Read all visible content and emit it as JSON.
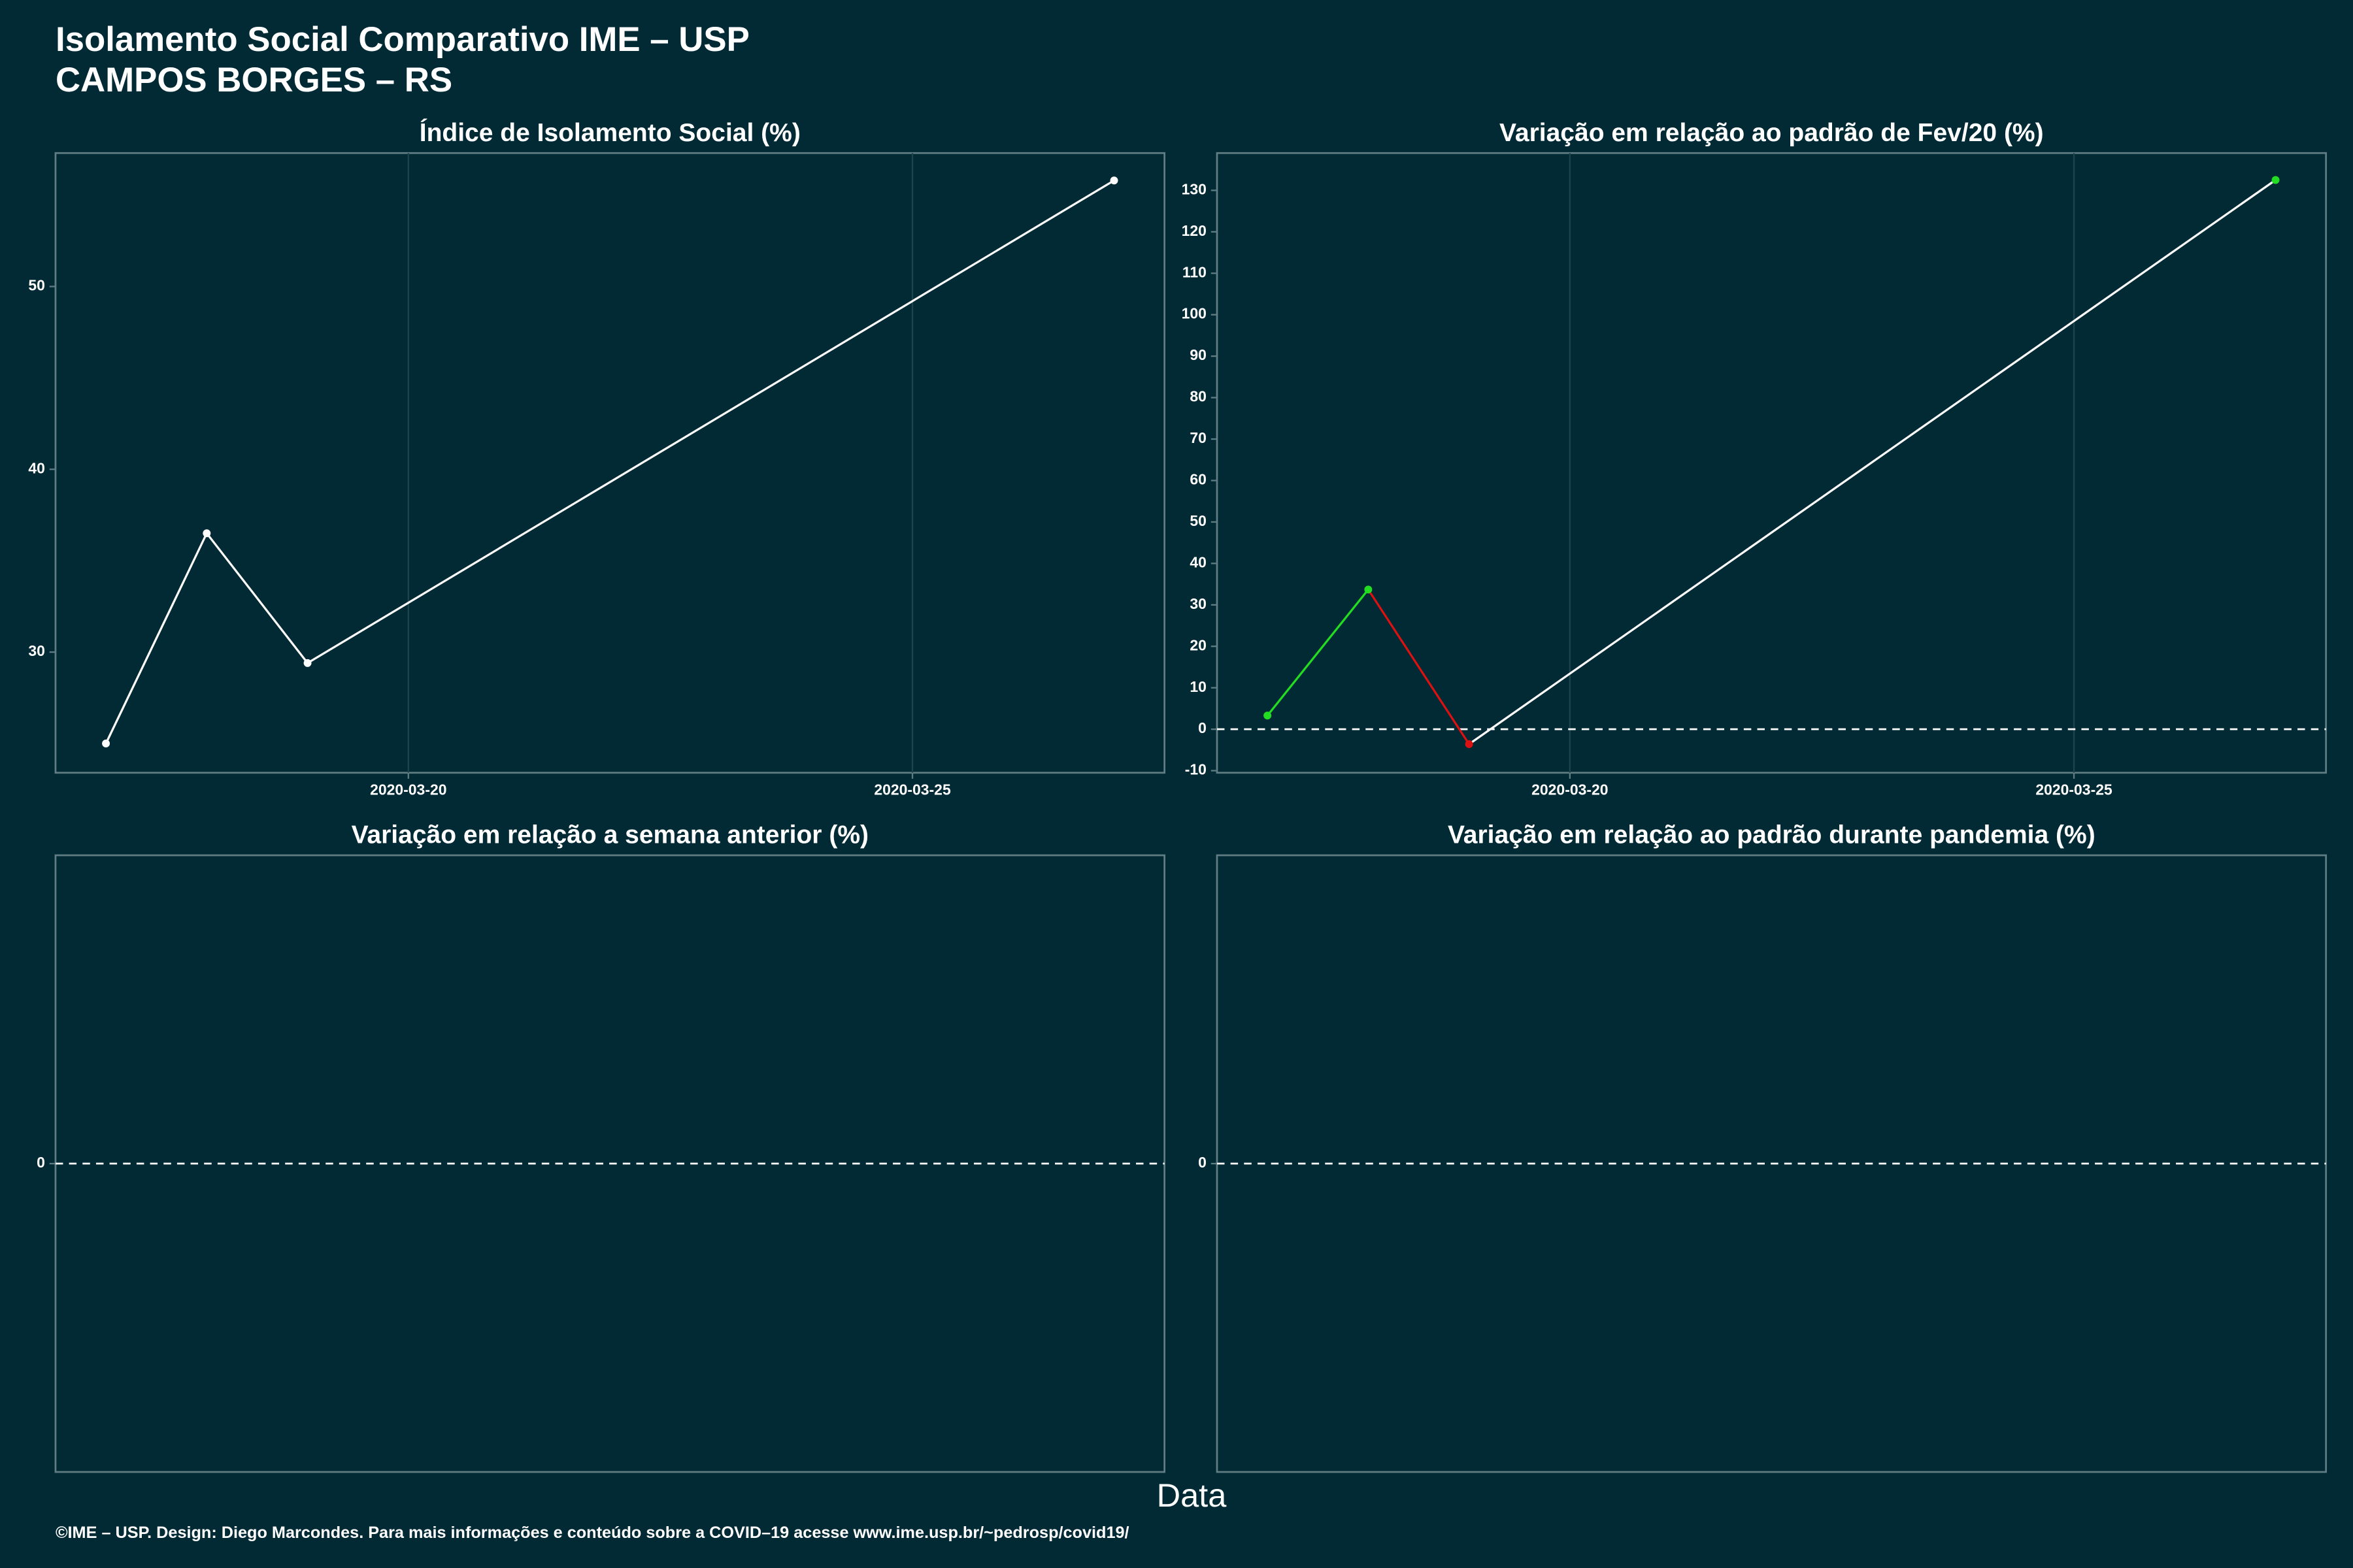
{
  "title": "Isolamento Social Comparativo IME – USP",
  "subtitle": "CAMPOS BORGES – RS",
  "xlabel": "Data",
  "footer": "©IME – USP. Design: Diego Marcondes. Para mais informações e conteúdo sobre a COVID–19 acesse www.ime.usp.br/~pedrosp/covid19/",
  "chart_data": [
    {
      "type": "line",
      "title": "Índice de Isolamento Social (%)",
      "x": [
        "2020-03-17",
        "2020-03-18",
        "2020-03-19",
        "2020-03-27"
      ],
      "values": [
        25.0,
        36.5,
        29.4,
        55.8
      ],
      "color": "#ffffff",
      "xlim": [
        "2020-03-16T12",
        "2020-03-27T12"
      ],
      "xticks": [
        "2020-03-20",
        "2020-03-25"
      ],
      "ylim": [
        23.4,
        57.3
      ],
      "yticks": [
        30,
        40,
        50
      ],
      "grid": "x"
    },
    {
      "type": "line",
      "title": "Variação em relação ao padrão de Fev/20 (%)",
      "x": [
        "2020-03-17",
        "2020-03-18",
        "2020-03-19",
        "2020-03-27"
      ],
      "values": [
        3.3,
        33.7,
        -3.6,
        132.5
      ],
      "point_colors": [
        "#22dd22",
        "#22dd22",
        "#dd1111",
        "#22dd22"
      ],
      "segment_colors": [
        "#22dd22",
        "#dd1111",
        "#ffffff"
      ],
      "xlim": [
        "2020-03-16T12",
        "2020-03-27T12"
      ],
      "xticks": [
        "2020-03-20",
        "2020-03-25"
      ],
      "ylim": [
        -10.5,
        139
      ],
      "yticks": [
        -10,
        0,
        10,
        20,
        30,
        40,
        50,
        60,
        70,
        80,
        90,
        100,
        110,
        120,
        130
      ],
      "hline": 0,
      "grid": "x"
    },
    {
      "type": "line",
      "title": "Variação em relação a semana anterior (%)",
      "x": [],
      "values": [],
      "color": "#ffffff",
      "ylim": [
        -1,
        1
      ],
      "yticks": [
        0
      ],
      "hline": 0
    },
    {
      "type": "line",
      "title": "Variação em relação ao padrão durante pandemia (%)",
      "x": [],
      "values": [],
      "color": "#ffffff",
      "ylim": [
        -1,
        1
      ],
      "yticks": [
        0
      ],
      "hline": 0
    }
  ]
}
